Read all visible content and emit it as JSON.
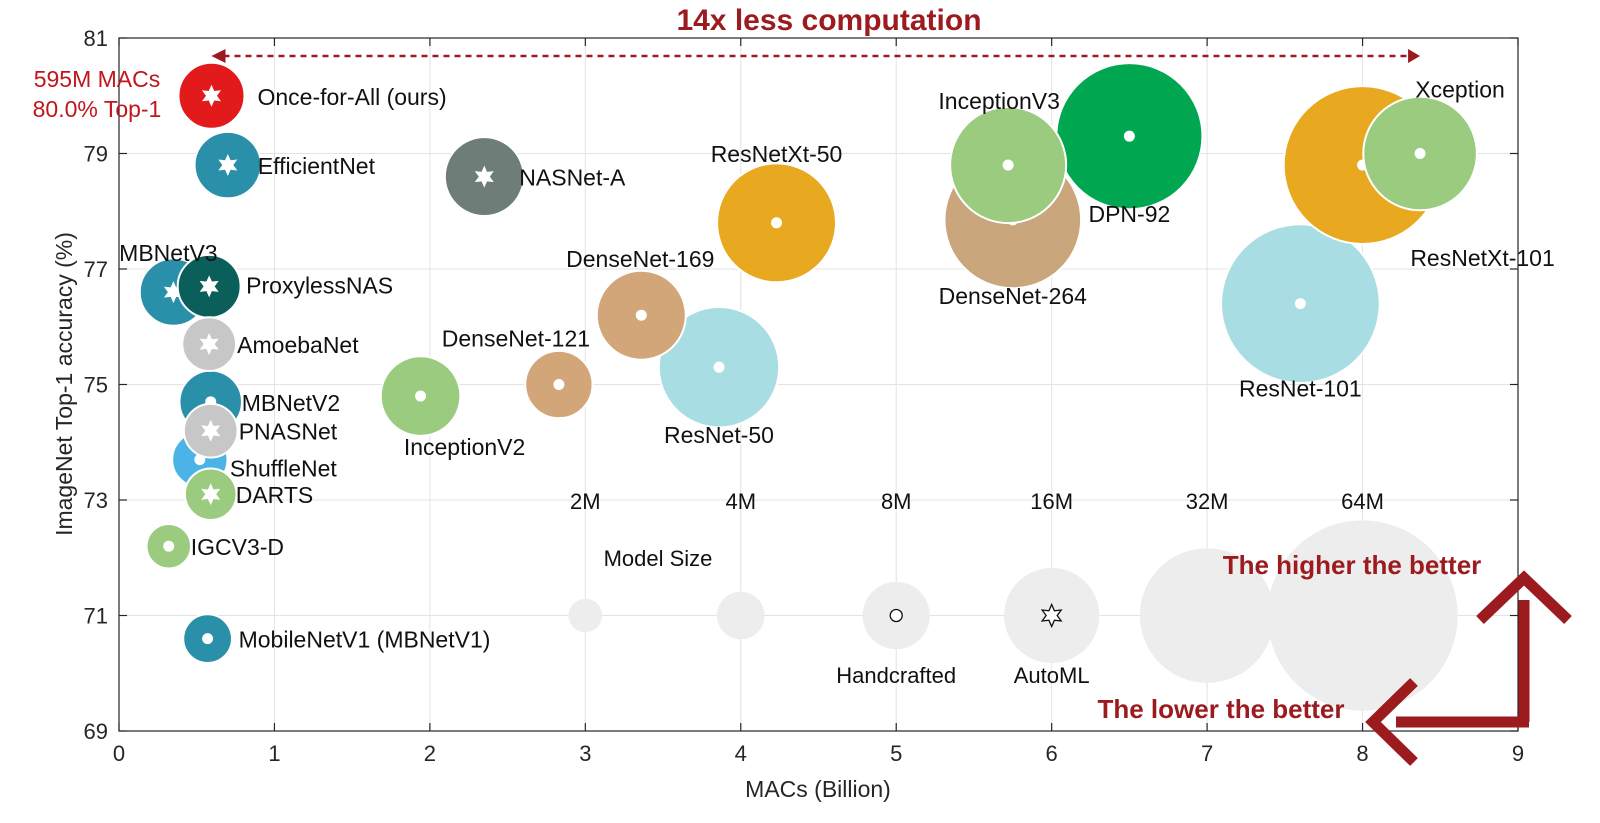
{
  "chart_data": {
    "type": "scatter",
    "title": "14x less computation",
    "xlabel": "MACs (Billion)",
    "ylabel": "ImageNet Top-1 accuracy (%)",
    "xlim": [
      0,
      9
    ],
    "ylim": [
      69,
      81
    ],
    "xticks": [
      0,
      1,
      2,
      3,
      4,
      5,
      6,
      7,
      8,
      9
    ],
    "yticks": [
      69,
      71,
      73,
      75,
      77,
      79,
      81
    ],
    "grid": true,
    "bubble_size_meaning": "Model Size",
    "annotations": {
      "ofa_macs": "595M MACs",
      "ofa_top1": "80.0% Top-1",
      "higher": "The higher the better",
      "lower": "The lower the better"
    },
    "points": [
      {
        "name": "Once-for-All (ours)",
        "x": 0.595,
        "y": 80.0,
        "size_m": 7.7,
        "type": "AutoML",
        "color": "#e31a1c"
      },
      {
        "name": "EfficientNet",
        "x": 0.7,
        "y": 78.8,
        "size_m": 7.8,
        "type": "AutoML",
        "color": "#2a8fa8"
      },
      {
        "name": "NASNet-A",
        "x": 2.35,
        "y": 78.6,
        "size_m": 11.0,
        "type": "AutoML",
        "color": "#6f7d78"
      },
      {
        "name": "MBNetV3",
        "x": 0.35,
        "y": 76.6,
        "size_m": 8.0,
        "type": "AutoML",
        "color": "#2a8fa8"
      },
      {
        "name": "ProxylessNAS",
        "x": 0.58,
        "y": 76.7,
        "size_m": 7.0,
        "type": "AutoML",
        "color": "#0b5f5a"
      },
      {
        "name": "AmoebaNet",
        "x": 0.58,
        "y": 75.7,
        "size_m": 5.1,
        "type": "AutoML",
        "color": "#c7c7c7"
      },
      {
        "name": "MBNetV2",
        "x": 0.59,
        "y": 74.7,
        "size_m": 6.9,
        "type": "Handcrafted",
        "color": "#2a8fa8"
      },
      {
        "name": "PNASNet",
        "x": 0.59,
        "y": 74.2,
        "size_m": 5.1,
        "type": "AutoML",
        "color": "#c7c7c7"
      },
      {
        "name": "ShuffleNet",
        "x": 0.52,
        "y": 73.7,
        "size_m": 5.4,
        "type": "Handcrafted",
        "color": "#4bb3e6"
      },
      {
        "name": "DARTS",
        "x": 0.59,
        "y": 73.1,
        "size_m": 4.7,
        "type": "AutoML",
        "color": "#9acb7f"
      },
      {
        "name": "IGCV3-D",
        "x": 0.32,
        "y": 72.2,
        "size_m": 3.5,
        "type": "Handcrafted",
        "color": "#9acb7f"
      },
      {
        "name": "MobileNetV1 (MBNetV1)",
        "x": 0.57,
        "y": 70.6,
        "size_m": 4.2,
        "type": "Handcrafted",
        "color": "#2a8fa8"
      },
      {
        "name": "InceptionV2",
        "x": 1.94,
        "y": 74.8,
        "size_m": 11.2,
        "type": "Handcrafted",
        "color": "#9acb7f"
      },
      {
        "name": "DenseNet-121",
        "x": 2.83,
        "y": 75.0,
        "size_m": 8.0,
        "type": "Handcrafted",
        "color": "#d2a679"
      },
      {
        "name": "DenseNet-169",
        "x": 3.36,
        "y": 76.2,
        "size_m": 14.0,
        "type": "Handcrafted",
        "color": "#d2a679"
      },
      {
        "name": "ResNet-50",
        "x": 3.86,
        "y": 75.3,
        "size_m": 25.6,
        "type": "Handcrafted",
        "color": "#a8dde4"
      },
      {
        "name": "ResNetXt-50",
        "x": 4.23,
        "y": 77.8,
        "size_m": 25.0,
        "type": "Handcrafted",
        "color": "#e8a820"
      },
      {
        "name": "DenseNet-264",
        "x": 5.75,
        "y": 77.85,
        "size_m": 33.0,
        "type": "Handcrafted",
        "color": "#c9a67c"
      },
      {
        "name": "InceptionV3",
        "x": 5.72,
        "y": 78.8,
        "size_m": 23.8,
        "type": "Handcrafted",
        "color": "#9acb7f"
      },
      {
        "name": "DPN-92",
        "x": 6.5,
        "y": 79.3,
        "size_m": 37.7,
        "type": "Handcrafted",
        "color": "#00a650"
      },
      {
        "name": "ResNet-101",
        "x": 7.6,
        "y": 76.4,
        "size_m": 44.5,
        "type": "Handcrafted",
        "color": "#a8dde4"
      },
      {
        "name": "ResNetXt-101",
        "x": 8.0,
        "y": 78.8,
        "size_m": 44.0,
        "type": "Handcrafted",
        "color": "#e8a820"
      },
      {
        "name": "Xception",
        "x": 8.37,
        "y": 79.0,
        "size_m": 22.8,
        "type": "Handcrafted",
        "color": "#9acb7f"
      }
    ],
    "size_legend": [
      {
        "label": "2M",
        "x": 3.0
      },
      {
        "label": "4M",
        "x": 4.0
      },
      {
        "label": "8M",
        "x": 5.0,
        "marker_label": "Handcrafted"
      },
      {
        "label": "16M",
        "x": 6.0,
        "marker_label": "AutoML"
      },
      {
        "label": "32M",
        "x": 7.0
      },
      {
        "label": "64M",
        "x": 8.0
      }
    ]
  }
}
